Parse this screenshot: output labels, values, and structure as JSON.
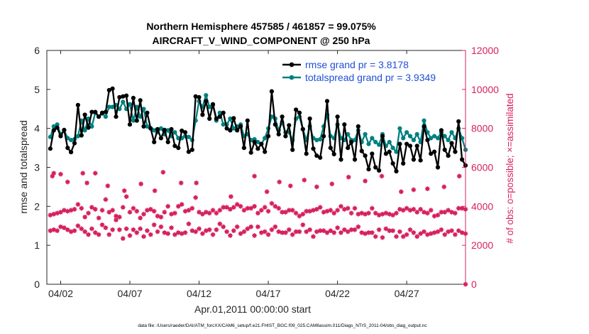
{
  "chart_data": {
    "type": "line",
    "title_line1": "Northern Hemisphere 457585 / 461857 = 99.075%",
    "title_line2": "AIRCRAFT_V_WIND_COMPONENT @ 250 hPa",
    "xlabel": "Apr.01,2011 00:00:00 start",
    "ylabel_left": "rmse and totalspread",
    "ylabel_right": "# of obs: o=possible; ×=assimilated",
    "footer": "data file: /Users/raeder/DAI/ATM_forcXX/CAM6_setup/f.e21.FHIST_BGC.f09_025.CAM6assim.011/Diags_NTrS_2011-04/obs_diag_output.nc",
    "x_tick_labels": [
      "04/02",
      "04/07",
      "04/12",
      "04/17",
      "04/22",
      "04/27"
    ],
    "x_tick_days": [
      1,
      6,
      11,
      16,
      21,
      26
    ],
    "xlim_days": [
      0,
      30.25
    ],
    "left_axis": {
      "ylim": [
        0,
        6
      ],
      "ticks": [
        "0",
        "1",
        "2",
        "3",
        "4",
        "5",
        "6"
      ]
    },
    "right_axis": {
      "ylim": [
        0,
        12000
      ],
      "ticks": [
        "0",
        "2000",
        "4000",
        "6000",
        "8000",
        "10000",
        "12000"
      ]
    },
    "legend": {
      "rmse": "rmse grand pr = 3.8178",
      "spread": "totalspread grand pr = 3.9349",
      "placement": "top-right"
    },
    "colors": {
      "rmse": "#000000",
      "spread": "#008080",
      "obs": "#d6215e",
      "legend_text": "#1f4fd6"
    },
    "series": [
      {
        "name": "rmse",
        "values": [
          3.48,
          3.95,
          4.02,
          3.8,
          3.96,
          3.5,
          3.39,
          3.62,
          4.6,
          3.82,
          4.35,
          4.02,
          4.42,
          4.42,
          4.3,
          4.4,
          4.42,
          4.98,
          5.02,
          4.3,
          4.8,
          4.82,
          4.84,
          4.1,
          4.78,
          4.2,
          4.72,
          4.05,
          4.4,
          4.0,
          3.65,
          3.98,
          3.75,
          3.96,
          3.65,
          3.98,
          3.55,
          3.5,
          3.94,
          3.9,
          3.4,
          3.45,
          4.82,
          4.8,
          4.35,
          4.7,
          4.25,
          4.62,
          4.25,
          4.3,
          4.4,
          4.0,
          3.95,
          4.26,
          3.95,
          4.05,
          3.5,
          4.2,
          3.38,
          3.65,
          3.48,
          3.6,
          3.4,
          3.8,
          4.95,
          4.1,
          3.85,
          4.3,
          3.8,
          4.08,
          3.45,
          4.48,
          4.4,
          3.98,
          3.35,
          4.25,
          3.48,
          3.3,
          3.25,
          3.8,
          4.7,
          3.5,
          3.34,
          4.3,
          3.2,
          4.1,
          3.5,
          3.65,
          3.2,
          4.05,
          3.42,
          3.3,
          2.95,
          3.35,
          3.0,
          2.92,
          3.8,
          3.35,
          3.4,
          3.1,
          2.9,
          3.6,
          3.1,
          3.6,
          3.55,
          3.2,
          3.55,
          3.18,
          4.05,
          3.7,
          3.35,
          3.4,
          3.0,
          3.95,
          3.45,
          3.3,
          3.62,
          3.4,
          4.18,
          3.2,
          3.05
        ]
      },
      {
        "name": "totalspread",
        "values": [
          3.78,
          4.05,
          4.1,
          3.85,
          3.95,
          3.75,
          3.7,
          3.72,
          3.8,
          4.2,
          3.95,
          4.25,
          4.05,
          4.4,
          4.3,
          4.38,
          4.3,
          4.55,
          4.55,
          4.6,
          4.5,
          4.68,
          4.5,
          4.62,
          4.2,
          4.55,
          4.3,
          4.5,
          4.05,
          4.0,
          3.95,
          3.9,
          4.0,
          3.85,
          3.95,
          3.8,
          3.9,
          3.75,
          3.75,
          3.8,
          3.78,
          3.7,
          4.2,
          4.7,
          4.55,
          4.85,
          4.55,
          4.6,
          4.2,
          4.4,
          4.1,
          4.1,
          4.25,
          4.0,
          4.05,
          4.1,
          3.8,
          3.85,
          3.7,
          3.72,
          3.65,
          3.6,
          3.75,
          4.0,
          4.3,
          4.25,
          3.95,
          4.15,
          3.9,
          3.9,
          3.7,
          4.25,
          4.3,
          3.98,
          3.7,
          4.05,
          3.75,
          3.7,
          3.72,
          4.05,
          4.35,
          3.8,
          3.75,
          4.1,
          3.75,
          3.7,
          3.85,
          3.7,
          3.7,
          3.95,
          3.65,
          3.85,
          3.6,
          3.75,
          3.65,
          3.58,
          3.85,
          3.55,
          3.65,
          3.5,
          3.4,
          4.0,
          3.75,
          3.9,
          3.8,
          3.7,
          3.85,
          3.65,
          4.2,
          3.9,
          3.75,
          3.8,
          3.75,
          3.9,
          3.8,
          3.7,
          3.9,
          3.75,
          4.0,
          3.75,
          3.45
        ]
      },
      {
        "name": "obs_upper",
        "values": [
          3550,
          3600,
          3650,
          3700,
          3800,
          3750,
          3800,
          3850,
          4100,
          3900,
          3450,
          3650,
          3950,
          3850,
          3400,
          3800,
          4350,
          3700,
          3800,
          3500,
          3450,
          3950,
          4500,
          3700,
          3900,
          3750,
          3400,
          3600,
          3800,
          3850,
          3750,
          3500,
          3450,
          3700,
          4000,
          3600,
          3650,
          4000,
          4100,
          3750,
          3800,
          3900,
          4450,
          3700,
          3600,
          3700,
          3650,
          3800,
          3650,
          3800,
          3950,
          3950,
          3850,
          3950,
          4100,
          4000,
          3800,
          3900,
          3900,
          4000,
          3650,
          3800,
          3950,
          3750,
          4150,
          4000,
          3900,
          3700,
          3700,
          3800,
          3800,
          3650,
          3500,
          3600,
          3750,
          3750,
          3800,
          3850,
          3950,
          3700,
          3750,
          3800,
          3650,
          3800,
          4000,
          3850,
          3900,
          3650,
          3900,
          3600,
          3650,
          3600,
          3650,
          3900,
          3650,
          3550,
          3600,
          3650,
          3600,
          3550,
          3650,
          3850,
          3800,
          3900,
          3800,
          3850,
          3700,
          3850,
          3700,
          3650,
          3800,
          3500,
          3550,
          3700,
          3700,
          3800,
          3700,
          3650,
          3900,
          3900,
          3850
        ]
      },
      {
        "name": "obs_lower",
        "values": [
          2750,
          2800,
          2750,
          2950,
          2900,
          2800,
          2700,
          2750,
          3000,
          2850,
          2700,
          2550,
          2850,
          2650,
          2550,
          3050,
          2900,
          2550,
          2800,
          3300,
          2800,
          2350,
          2850,
          2500,
          2800,
          2650,
          2850,
          2450,
          2750,
          2550,
          3050,
          2700,
          2950,
          2650,
          2600,
          2900,
          2550,
          2650,
          2600,
          2650,
          3100,
          2750,
          2700,
          2850,
          2600,
          2750,
          2800,
          2550,
          2800,
          3100,
          2950,
          2700,
          2500,
          2750,
          2950,
          2600,
          2700,
          2850,
          2950,
          2500,
          2950,
          2650,
          2700,
          2550,
          2800,
          2950,
          2700,
          2650,
          2650,
          2800,
          2550,
          2700,
          2700,
          3050,
          2700,
          2800,
          2450,
          2700,
          2750,
          2750,
          2650,
          2750,
          2650,
          2900,
          2650,
          2800,
          2700,
          2800,
          2800,
          2950,
          2650,
          2600,
          2650,
          2650,
          2450,
          2800,
          2400,
          2850,
          2750,
          2750,
          2450,
          2700,
          2450,
          2550,
          2800,
          2650,
          2450,
          2600,
          2700,
          2550,
          2600,
          2650,
          2700,
          2800,
          2550,
          2700,
          2750,
          2550,
          2750,
          2650,
          2600
        ]
      },
      {
        "name": "obs_extra",
        "x_days": [
          0.4,
          0.5,
          1.0,
          1.5,
          2.6,
          2.9,
          3.5,
          4.4,
          5.6,
          6.8,
          7.8,
          8.4,
          9.7,
          10.8,
          13.3,
          15.0,
          15.9,
          16.8,
          17.6,
          18.6,
          19.5,
          20.6,
          21.8,
          23.0,
          24.2,
          25.6,
          26.5,
          27.5,
          28.7,
          29.8
        ],
        "values": [
          5550,
          5700,
          5650,
          5250,
          5700,
          5200,
          5700,
          5050,
          4800,
          5150,
          4800,
          5750,
          5200,
          5200,
          4500,
          5550,
          4750,
          5250,
          5050,
          5350,
          5000,
          5150,
          5500,
          5300,
          5550,
          4750,
          4850,
          4900,
          5000,
          5550
        ]
      },
      {
        "name": "obs_final",
        "x_days": [
          30.25
        ],
        "values": [
          0
        ]
      }
    ]
  }
}
